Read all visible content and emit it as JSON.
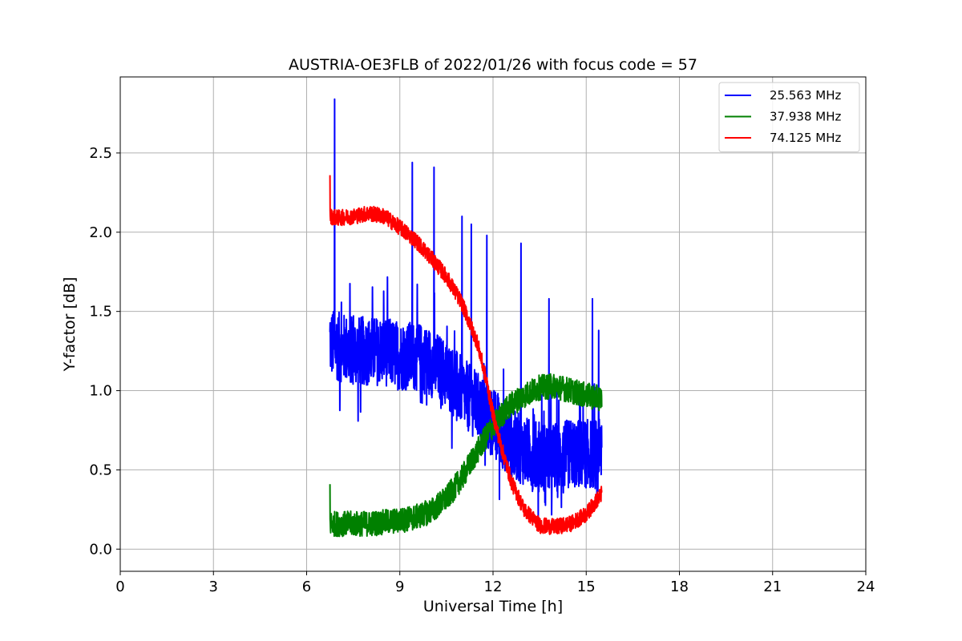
{
  "chart_data": {
    "type": "line",
    "title": "AUSTRIA-OE3FLB of 2022/01/26 with focus code = 57",
    "xlabel": "Universal Time [h]",
    "ylabel": "Y-factor [dB]",
    "xlim": [
      0,
      24
    ],
    "ylim": [
      -0.14,
      2.98
    ],
    "xticks": [
      0,
      3,
      6,
      9,
      12,
      15,
      18,
      21,
      24
    ],
    "xtick_labels": [
      "0",
      "3",
      "6",
      "9",
      "12",
      "15",
      "18",
      "21",
      "24"
    ],
    "yticks": [
      0.0,
      0.5,
      1.0,
      1.5,
      2.0,
      2.5
    ],
    "ytick_labels": [
      "0.0",
      "0.5",
      "1.0",
      "1.5",
      "2.0",
      "2.5"
    ],
    "grid": true,
    "legend_position": "top-right",
    "series": [
      {
        "name": "25.563 MHz",
        "color": "#0000ff",
        "noise": 0.22,
        "spikes": [
          [
            6.9,
            2.84
          ],
          [
            9.4,
            2.44
          ],
          [
            10.1,
            2.41
          ],
          [
            11.0,
            2.1
          ],
          [
            11.3,
            2.05
          ],
          [
            11.8,
            1.98
          ],
          [
            12.9,
            1.93
          ],
          [
            13.8,
            1.58
          ],
          [
            15.2,
            1.58
          ],
          [
            15.4,
            1.38
          ]
        ],
        "x": [
          6.75,
          7.0,
          7.5,
          8.0,
          8.5,
          9.0,
          9.5,
          10.0,
          10.5,
          11.0,
          11.5,
          12.0,
          12.5,
          13.0,
          13.5,
          14.0,
          14.5,
          15.0,
          15.5
        ],
        "values": [
          1.3,
          1.28,
          1.25,
          1.25,
          1.25,
          1.22,
          1.22,
          1.18,
          1.1,
          1.0,
          0.9,
          0.8,
          0.68,
          0.62,
          0.58,
          0.58,
          0.6,
          0.6,
          0.6
        ]
      },
      {
        "name": "37.938 MHz",
        "color": "#008000",
        "noise": 0.08,
        "spikes": [
          [
            6.75,
            0.41
          ]
        ],
        "x": [
          6.75,
          7.0,
          7.5,
          8.0,
          8.5,
          9.0,
          9.5,
          10.0,
          10.5,
          11.0,
          11.5,
          12.0,
          12.5,
          13.0,
          13.5,
          14.0,
          14.5,
          15.0,
          15.5
        ],
        "values": [
          0.16,
          0.16,
          0.16,
          0.16,
          0.17,
          0.18,
          0.2,
          0.24,
          0.32,
          0.45,
          0.62,
          0.78,
          0.9,
          0.97,
          1.02,
          1.03,
          1.0,
          0.97,
          0.95
        ]
      },
      {
        "name": "74.125 MHz",
        "color": "#ff0000",
        "noise": 0.05,
        "spikes": [
          [
            6.75,
            2.36
          ]
        ],
        "x": [
          6.75,
          7.0,
          7.5,
          8.0,
          8.5,
          9.0,
          9.5,
          10.0,
          10.5,
          11.0,
          11.5,
          11.8,
          12.0,
          12.3,
          12.6,
          13.0,
          13.5,
          14.0,
          14.5,
          15.0,
          15.5
        ],
        "values": [
          2.1,
          2.09,
          2.1,
          2.12,
          2.1,
          2.03,
          1.95,
          1.84,
          1.72,
          1.55,
          1.3,
          1.05,
          0.85,
          0.62,
          0.42,
          0.25,
          0.15,
          0.14,
          0.16,
          0.22,
          0.35
        ]
      }
    ]
  }
}
